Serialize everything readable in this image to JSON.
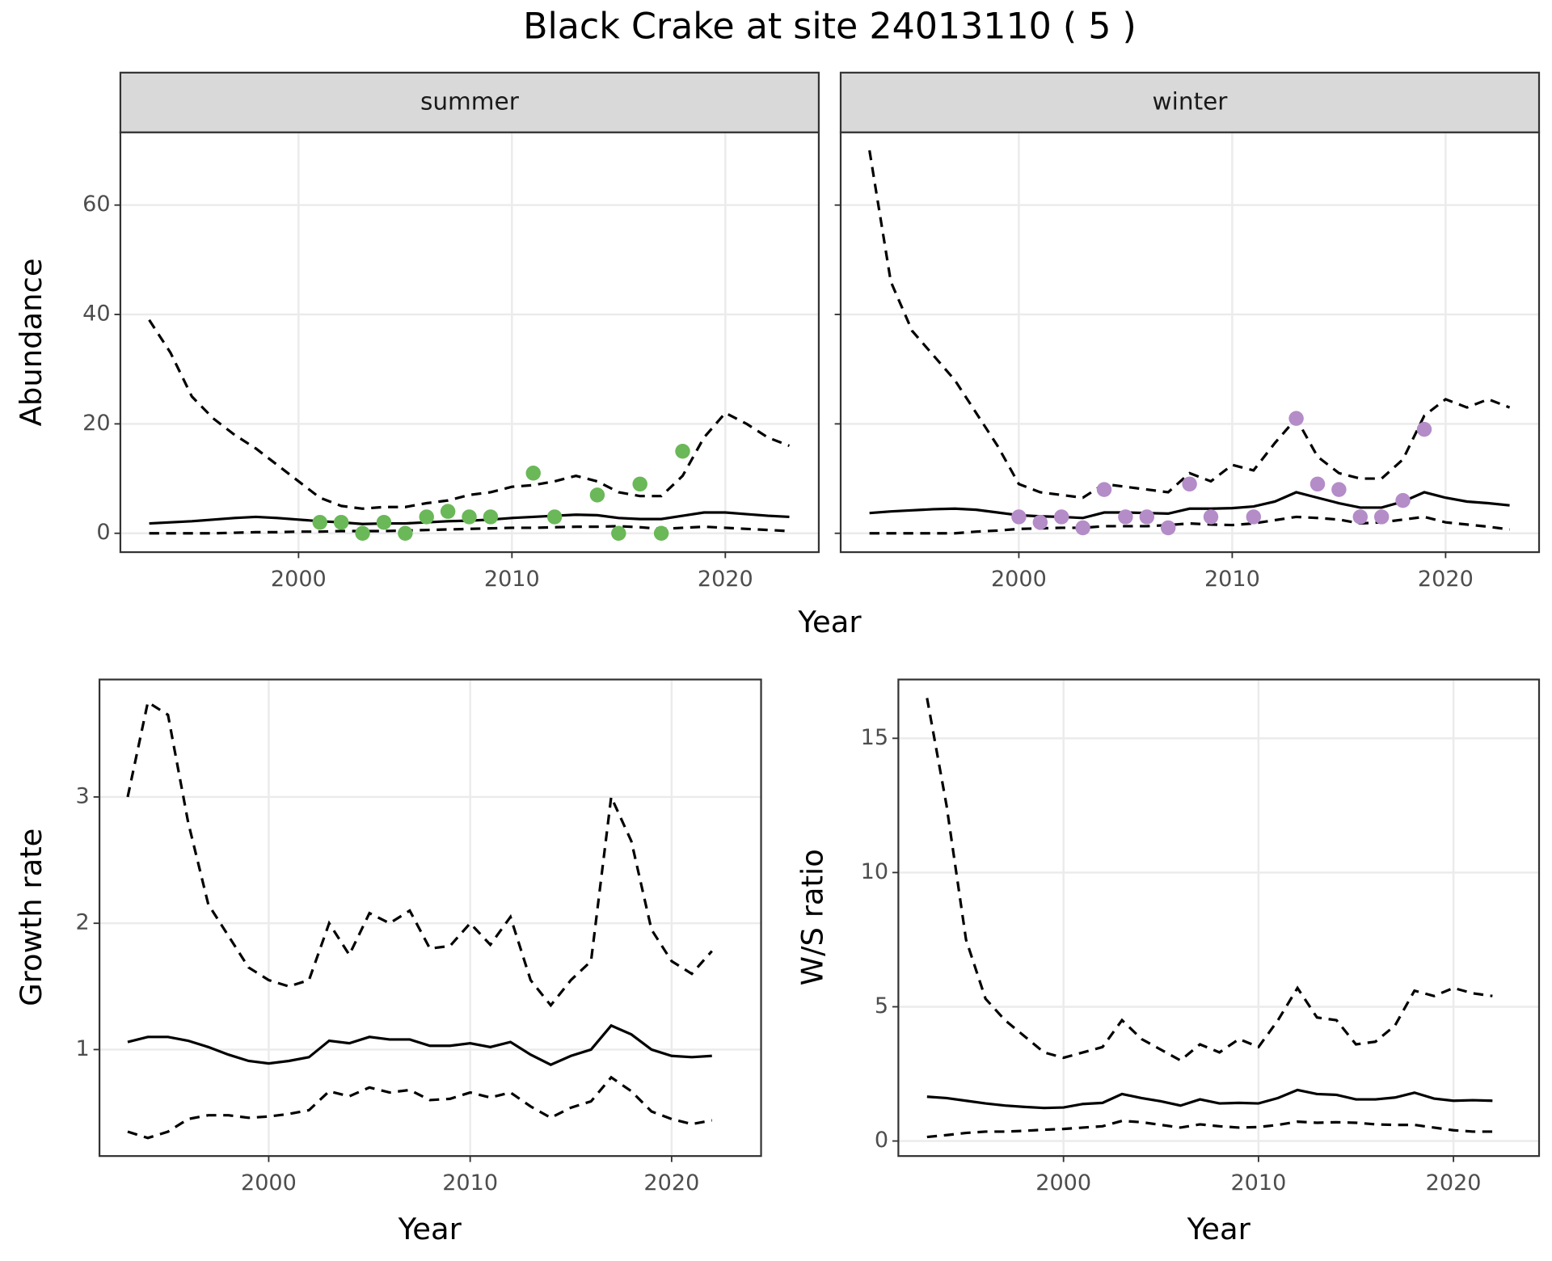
{
  "title": "Black Crake at site 24013110 ( 5 )",
  "chart_data": [
    {
      "type": "line",
      "panel": "summer",
      "ylabel": "Abundance",
      "xlabel": "Year",
      "grid": true,
      "xlim": [
        1991.65,
        2024.38
      ],
      "ylim": [
        -3.45,
        73.3
      ],
      "xticks": [
        2000,
        2010,
        2020
      ],
      "yticks": [
        0,
        20,
        40,
        60
      ],
      "series": [
        {
          "style": "dashed",
          "color": "#000000",
          "x": [
            1993,
            1994,
            1995,
            1996,
            1997,
            1998,
            1999,
            2000,
            2001,
            2002,
            2003,
            2004,
            2005,
            2006,
            2007,
            2008,
            2009,
            2010,
            2011,
            2012,
            2013,
            2014,
            2015,
            2016,
            2017,
            2018,
            2019,
            2020,
            2021,
            2022,
            2023
          ],
          "values": [
            39,
            33,
            25,
            21,
            18,
            15.5,
            12.5,
            9.5,
            6.5,
            5,
            4.5,
            4.8,
            4.8,
            5.5,
            6,
            7,
            7.5,
            8.5,
            8.8,
            9.5,
            10.5,
            9.5,
            7.5,
            6.8,
            6.8,
            10.5,
            17.5,
            22,
            20,
            17.5,
            16
          ]
        },
        {
          "style": "solid",
          "color": "#000000",
          "x": [
            1993,
            1994,
            1995,
            1996,
            1997,
            1998,
            1999,
            2000,
            2001,
            2002,
            2003,
            2004,
            2005,
            2006,
            2007,
            2008,
            2009,
            2010,
            2011,
            2012,
            2013,
            2014,
            2015,
            2016,
            2017,
            2018,
            2019,
            2020,
            2021,
            2022,
            2023
          ],
          "values": [
            1.8,
            2,
            2.2,
            2.5,
            2.8,
            3,
            2.8,
            2.5,
            2.2,
            2,
            1.7,
            1.8,
            1.8,
            2,
            2.2,
            2.3,
            2.5,
            2.8,
            3,
            3.2,
            3.4,
            3.3,
            2.8,
            2.6,
            2.6,
            3.2,
            3.8,
            3.8,
            3.5,
            3.2,
            3
          ]
        },
        {
          "style": "dashed",
          "color": "#000000",
          "x": [
            1993,
            1994,
            1995,
            1996,
            1997,
            1998,
            1999,
            2000,
            2001,
            2002,
            2003,
            2004,
            2005,
            2006,
            2007,
            2008,
            2009,
            2010,
            2011,
            2012,
            2013,
            2014,
            2015,
            2016,
            2017,
            2018,
            2019,
            2020,
            2021,
            2022,
            2023
          ],
          "values": [
            0,
            0,
            0,
            0,
            0.1,
            0.2,
            0.2,
            0.3,
            0.3,
            0.4,
            0.4,
            0.4,
            0.5,
            0.6,
            0.7,
            0.8,
            0.9,
            1,
            1,
            1.1,
            1.2,
            1.2,
            1.3,
            1.1,
            0.8,
            1,
            1.2,
            1,
            0.8,
            0.6,
            0.4
          ]
        },
        {
          "type": "scatter",
          "color": "#6ab858",
          "x": [
            2001,
            2002,
            2003,
            2004,
            2005,
            2006,
            2007,
            2008,
            2009,
            2011,
            2012,
            2014,
            2015,
            2016,
            2017,
            2018
          ],
          "values": [
            2,
            2,
            0,
            2,
            0,
            3,
            4,
            3,
            3,
            11,
            3,
            7,
            0,
            9,
            0,
            15
          ]
        }
      ]
    },
    {
      "type": "line",
      "panel": "winter",
      "grid": true,
      "ytick_labels": false,
      "xlim": [
        1991.65,
        2024.38
      ],
      "ylim": [
        -3.45,
        73.3
      ],
      "xticks": [
        2000,
        2010,
        2020
      ],
      "yticks": [
        0,
        20,
        40,
        60
      ],
      "series": [
        {
          "style": "dashed",
          "color": "#000000",
          "x": [
            1993,
            1994,
            1995,
            1996,
            1997,
            1998,
            1999,
            2000,
            2001,
            2002,
            2003,
            2004,
            2005,
            2006,
            2007,
            2008,
            2009,
            2010,
            2011,
            2012,
            2013,
            2014,
            2015,
            2016,
            2017,
            2018,
            2019,
            2020,
            2021,
            2022,
            2023
          ],
          "values": [
            70,
            46,
            37,
            32.5,
            28,
            22,
            16,
            9,
            7.5,
            7,
            6.5,
            9,
            8.5,
            8,
            7.5,
            11,
            9.5,
            12.5,
            11.5,
            16.5,
            21,
            14,
            11,
            10,
            10,
            13.5,
            21.5,
            24.5,
            23,
            24.5,
            23
          ]
        },
        {
          "style": "solid",
          "color": "#000000",
          "x": [
            1993,
            1994,
            1995,
            1996,
            1997,
            1998,
            1999,
            2000,
            2001,
            2002,
            2003,
            2004,
            2005,
            2006,
            2007,
            2008,
            2009,
            2010,
            2011,
            2012,
            2013,
            2014,
            2015,
            2016,
            2017,
            2018,
            2019,
            2020,
            2021,
            2022,
            2023
          ],
          "values": [
            3.7,
            4,
            4.2,
            4.4,
            4.5,
            4.3,
            3.8,
            3.3,
            3.1,
            3,
            2.8,
            3.8,
            3.8,
            3.7,
            3.6,
            4.5,
            4.5,
            4.6,
            4.9,
            5.8,
            7.5,
            6.5,
            5.5,
            4.7,
            4.7,
            5.8,
            7.5,
            6.5,
            5.8,
            5.5,
            5.1
          ]
        },
        {
          "style": "dashed",
          "color": "#000000",
          "x": [
            1993,
            1994,
            1995,
            1996,
            1997,
            1998,
            1999,
            2000,
            2001,
            2002,
            2003,
            2004,
            2005,
            2006,
            2007,
            2008,
            2009,
            2010,
            2011,
            2012,
            2013,
            2014,
            2015,
            2016,
            2017,
            2018,
            2019,
            2020,
            2021,
            2022,
            2023
          ],
          "values": [
            0,
            0,
            0,
            0,
            0,
            0.3,
            0.5,
            0.8,
            0.9,
            1,
            1,
            1.3,
            1.3,
            1.3,
            1.5,
            1.8,
            1.6,
            1.5,
            1.8,
            2.4,
            3,
            2.8,
            2.5,
            1.8,
            2,
            2.5,
            3,
            2,
            1.6,
            1.2,
            0.7
          ]
        },
        {
          "type": "scatter",
          "color": "#b48cc8",
          "x": [
            2000,
            2001,
            2002,
            2003,
            2004,
            2005,
            2006,
            2007,
            2008,
            2009,
            2011,
            2013,
            2014,
            2015,
            2016,
            2017,
            2018,
            2019
          ],
          "values": [
            3,
            2,
            3,
            1,
            8,
            3,
            3,
            1,
            9,
            3,
            3,
            21,
            9,
            8,
            3,
            3,
            6,
            19
          ]
        }
      ]
    },
    {
      "type": "line",
      "ylabel": "Growth rate",
      "xlabel": "Year",
      "grid": true,
      "xlim": [
        1991.6,
        2024.44
      ],
      "ylim": [
        0.157,
        3.93
      ],
      "xticks": [
        2000,
        2010,
        2020
      ],
      "yticks": [
        1,
        2,
        3
      ],
      "series": [
        {
          "style": "dashed",
          "color": "#000000",
          "x": [
            1993,
            1994,
            1995,
            1996,
            1997,
            1998,
            1999,
            2000,
            2001,
            2002,
            2003,
            2004,
            2005,
            2006,
            2007,
            2008,
            2009,
            2010,
            2011,
            2012,
            2013,
            2014,
            2015,
            2016,
            2017,
            2018,
            2019,
            2020,
            2021,
            2022
          ],
          "values": [
            3.0,
            3.75,
            3.65,
            2.8,
            2.15,
            1.9,
            1.65,
            1.55,
            1.5,
            1.55,
            2.0,
            1.75,
            2.08,
            2.0,
            2.1,
            1.8,
            1.82,
            2.0,
            1.83,
            2.05,
            1.55,
            1.35,
            1.55,
            1.7,
            3.0,
            2.65,
            1.95,
            1.7,
            1.6,
            1.78
          ]
        },
        {
          "style": "solid",
          "color": "#000000",
          "x": [
            1993,
            1994,
            1995,
            1996,
            1997,
            1998,
            1999,
            2000,
            2001,
            2002,
            2003,
            2004,
            2005,
            2006,
            2007,
            2008,
            2009,
            2010,
            2011,
            2012,
            2013,
            2014,
            2015,
            2016,
            2017,
            2018,
            2019,
            2020,
            2021,
            2022
          ],
          "values": [
            1.06,
            1.1,
            1.1,
            1.07,
            1.02,
            0.96,
            0.91,
            0.89,
            0.91,
            0.94,
            1.07,
            1.05,
            1.1,
            1.08,
            1.08,
            1.03,
            1.03,
            1.05,
            1.02,
            1.06,
            0.96,
            0.88,
            0.95,
            1.0,
            1.19,
            1.12,
            1.0,
            0.95,
            0.94,
            0.95
          ]
        },
        {
          "style": "dashed",
          "color": "#000000",
          "x": [
            1993,
            1994,
            1995,
            1996,
            1997,
            1998,
            1999,
            2000,
            2001,
            2002,
            2003,
            2004,
            2005,
            2006,
            2007,
            2008,
            2009,
            2010,
            2011,
            2012,
            2013,
            2014,
            2015,
            2016,
            2017,
            2018,
            2019,
            2020,
            2021,
            2022
          ],
          "values": [
            0.35,
            0.3,
            0.35,
            0.45,
            0.48,
            0.48,
            0.46,
            0.47,
            0.49,
            0.52,
            0.67,
            0.63,
            0.7,
            0.66,
            0.68,
            0.6,
            0.61,
            0.66,
            0.62,
            0.66,
            0.55,
            0.46,
            0.54,
            0.59,
            0.78,
            0.67,
            0.51,
            0.45,
            0.41,
            0.44
          ]
        }
      ]
    },
    {
      "type": "line",
      "ylabel": "W/S ratio",
      "xlabel": "Year",
      "grid": true,
      "xlim": [
        1991.53,
        2024.39
      ],
      "ylim": [
        -0.56,
        17.19
      ],
      "xticks": [
        2000,
        2010,
        2020
      ],
      "yticks": [
        0,
        5,
        10,
        15
      ],
      "series": [
        {
          "style": "dashed",
          "color": "#000000",
          "x": [
            1993,
            1994,
            1995,
            1996,
            1997,
            1998,
            1999,
            2000,
            2001,
            2002,
            2003,
            2004,
            2005,
            2006,
            2007,
            2008,
            2009,
            2010,
            2011,
            2012,
            2013,
            2014,
            2015,
            2016,
            2017,
            2018,
            2019,
            2020,
            2021,
            2022
          ],
          "values": [
            16.5,
            12.5,
            7.5,
            5.3,
            4.5,
            3.9,
            3.3,
            3.1,
            3.3,
            3.5,
            4.5,
            3.8,
            3.4,
            3.0,
            3.6,
            3.3,
            3.8,
            3.5,
            4.5,
            5.7,
            4.6,
            4.5,
            3.6,
            3.7,
            4.3,
            5.6,
            5.4,
            5.7,
            5.5,
            5.4
          ]
        },
        {
          "style": "solid",
          "color": "#000000",
          "x": [
            1993,
            1994,
            1995,
            1996,
            1997,
            1998,
            1999,
            2000,
            2001,
            2002,
            2003,
            2004,
            2005,
            2006,
            2007,
            2008,
            2009,
            2010,
            2011,
            2012,
            2013,
            2014,
            2015,
            2016,
            2017,
            2018,
            2019,
            2020,
            2021,
            2022
          ],
          "values": [
            1.65,
            1.6,
            1.5,
            1.4,
            1.32,
            1.27,
            1.23,
            1.25,
            1.38,
            1.42,
            1.75,
            1.6,
            1.48,
            1.32,
            1.55,
            1.4,
            1.42,
            1.4,
            1.6,
            1.9,
            1.75,
            1.72,
            1.55,
            1.55,
            1.62,
            1.8,
            1.58,
            1.5,
            1.52,
            1.5
          ]
        },
        {
          "style": "dashed",
          "color": "#000000",
          "x": [
            1993,
            1994,
            1995,
            1996,
            1997,
            1998,
            1999,
            2000,
            2001,
            2002,
            2003,
            2004,
            2005,
            2006,
            2007,
            2008,
            2009,
            2010,
            2011,
            2012,
            2013,
            2014,
            2015,
            2016,
            2017,
            2018,
            2019,
            2020,
            2021,
            2022
          ],
          "values": [
            0.15,
            0.22,
            0.3,
            0.35,
            0.35,
            0.38,
            0.42,
            0.45,
            0.5,
            0.55,
            0.75,
            0.7,
            0.6,
            0.5,
            0.62,
            0.55,
            0.5,
            0.52,
            0.6,
            0.72,
            0.68,
            0.7,
            0.68,
            0.62,
            0.6,
            0.6,
            0.5,
            0.4,
            0.35,
            0.35
          ]
        }
      ]
    }
  ]
}
